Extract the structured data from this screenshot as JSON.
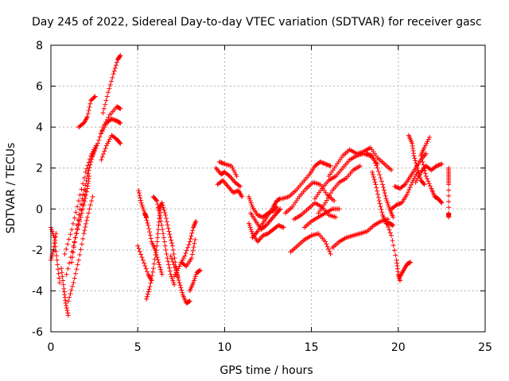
{
  "chart_data": {
    "type": "scatter",
    "title": "Day 245 of 2022, Sidereal Day-to-day VTEC variation (SDTVAR) for receiver gasc",
    "xlabel": "GPS time / hours",
    "ylabel": "SDTVAR / TECUs",
    "xlim": [
      0,
      25
    ],
    "ylim": [
      -6,
      8
    ],
    "xticks": [
      "0",
      "5",
      "10",
      "15",
      "20",
      "25"
    ],
    "yticks": [
      "-6",
      "-4",
      "-2",
      "0",
      "2",
      "4",
      "6",
      "8"
    ],
    "grid": true,
    "marker": "+",
    "color": "#ff0000",
    "traces": [
      [
        [
          0.0,
          -0.9
        ],
        [
          0.2,
          -1.4
        ],
        [
          0.35,
          -2.5
        ],
        [
          0.5,
          -3.6
        ]
      ],
      [
        [
          0.0,
          -2.5
        ],
        [
          0.15,
          -2.0
        ],
        [
          0.3,
          -1.2
        ]
      ],
      [
        [
          0.6,
          -2.9
        ],
        [
          0.75,
          -3.9
        ],
        [
          0.85,
          -4.6
        ],
        [
          1.0,
          -5.2
        ]
      ],
      [
        [
          0.8,
          -2.2
        ],
        [
          1.2,
          -1.0
        ],
        [
          1.6,
          0.4
        ],
        [
          2.0,
          1.8
        ],
        [
          2.3,
          2.6
        ],
        [
          2.6,
          3.1
        ]
      ],
      [
        [
          0.9,
          -3.2
        ],
        [
          1.3,
          -1.8
        ],
        [
          1.6,
          -0.8
        ],
        [
          1.9,
          0.2
        ],
        [
          2.1,
          1.0
        ],
        [
          2.2,
          1.6
        ]
      ],
      [
        [
          1.2,
          -2.6
        ],
        [
          1.4,
          -1.4
        ],
        [
          1.7,
          -0.3
        ],
        [
          2.0,
          0.9
        ]
      ],
      [
        [
          1.0,
          -4.5
        ],
        [
          1.3,
          -3.6
        ],
        [
          1.6,
          -2.5
        ],
        [
          1.9,
          -1.2
        ],
        [
          2.1,
          -0.4
        ],
        [
          2.4,
          0.6
        ]
      ],
      [
        [
          1.5,
          -0.8
        ],
        [
          1.8,
          0.5
        ],
        [
          2.1,
          1.6
        ],
        [
          2.3,
          2.3
        ],
        [
          2.5,
          2.9
        ]
      ],
      [
        [
          1.6,
          4.0
        ],
        [
          1.9,
          4.2
        ],
        [
          2.1,
          4.5
        ],
        [
          2.3,
          5.3
        ],
        [
          2.55,
          5.5
        ]
      ],
      [
        [
          2.4,
          2.6
        ],
        [
          2.7,
          3.2
        ],
        [
          3.0,
          4.0
        ],
        [
          3.4,
          4.6
        ],
        [
          3.8,
          5.0
        ],
        [
          4.0,
          4.9
        ]
      ],
      [
        [
          2.9,
          2.4
        ],
        [
          3.2,
          3.1
        ],
        [
          3.5,
          3.6
        ],
        [
          3.8,
          3.4
        ],
        [
          4.0,
          3.2
        ]
      ],
      [
        [
          2.9,
          3.7
        ],
        [
          3.2,
          4.2
        ],
        [
          3.5,
          4.4
        ],
        [
          3.8,
          4.3
        ],
        [
          4.0,
          4.2
        ]
      ],
      [
        [
          3.0,
          4.7
        ],
        [
          3.3,
          5.7
        ],
        [
          3.6,
          6.6
        ],
        [
          3.85,
          7.3
        ],
        [
          4.0,
          7.5
        ]
      ],
      [
        [
          5.05,
          0.9
        ],
        [
          5.2,
          0.3
        ],
        [
          5.4,
          -0.2
        ],
        [
          5.5,
          -0.4
        ]
      ],
      [
        [
          5.0,
          -1.8
        ],
        [
          5.3,
          -2.5
        ],
        [
          5.6,
          -3.2
        ],
        [
          5.8,
          -3.5
        ]
      ],
      [
        [
          5.4,
          -0.2
        ],
        [
          5.6,
          -0.8
        ],
        [
          5.8,
          -1.6
        ],
        [
          6.0,
          -2.0
        ],
        [
          6.2,
          -2.6
        ],
        [
          6.4,
          -3.2
        ]
      ],
      [
        [
          5.5,
          -4.4
        ],
        [
          5.7,
          -3.8
        ],
        [
          5.9,
          -2.9
        ],
        [
          6.1,
          -1.8
        ],
        [
          6.2,
          -0.8
        ],
        [
          6.3,
          0.0
        ]
      ],
      [
        [
          5.9,
          0.6
        ],
        [
          6.1,
          0.4
        ],
        [
          6.3,
          -0.4
        ],
        [
          6.5,
          -1.4
        ],
        [
          6.7,
          -2.4
        ],
        [
          6.9,
          -3.2
        ],
        [
          7.1,
          -3.7
        ]
      ],
      [
        [
          6.2,
          0.0
        ],
        [
          6.4,
          0.3
        ],
        [
          6.6,
          -0.3
        ],
        [
          6.8,
          -1.1
        ],
        [
          7.0,
          -1.8
        ],
        [
          7.2,
          -2.8
        ],
        [
          7.3,
          -3.3
        ]
      ],
      [
        [
          6.9,
          -2.3
        ],
        [
          7.2,
          -3.0
        ],
        [
          7.4,
          -3.6
        ],
        [
          7.6,
          -4.2
        ],
        [
          7.8,
          -4.6
        ],
        [
          8.0,
          -4.5
        ]
      ],
      [
        [
          7.1,
          -3.3
        ],
        [
          7.4,
          -2.8
        ],
        [
          7.7,
          -2.3
        ],
        [
          8.0,
          -1.6
        ],
        [
          8.2,
          -0.9
        ],
        [
          8.35,
          -0.6
        ]
      ],
      [
        [
          7.5,
          -2.6
        ],
        [
          7.8,
          -2.8
        ],
        [
          8.1,
          -2.4
        ],
        [
          8.3,
          -1.5
        ]
      ],
      [
        [
          8.0,
          -4.0
        ],
        [
          8.2,
          -3.6
        ],
        [
          8.4,
          -3.1
        ],
        [
          8.6,
          -3.0
        ]
      ],
      [
        [
          9.5,
          2.0
        ],
        [
          9.8,
          1.7
        ],
        [
          10.0,
          1.8
        ],
        [
          10.3,
          1.6
        ],
        [
          10.6,
          1.3
        ],
        [
          10.9,
          1.1
        ]
      ],
      [
        [
          9.6,
          1.2
        ],
        [
          9.9,
          1.4
        ],
        [
          10.2,
          1.1
        ],
        [
          10.5,
          0.8
        ],
        [
          10.8,
          0.9
        ],
        [
          11.0,
          0.6
        ]
      ],
      [
        [
          9.7,
          2.3
        ],
        [
          10.0,
          2.2
        ],
        [
          10.4,
          2.1
        ],
        [
          10.7,
          1.6
        ]
      ],
      [
        [
          11.4,
          0.6
        ],
        [
          11.6,
          0.1
        ],
        [
          11.9,
          -0.3
        ],
        [
          12.2,
          -0.4
        ],
        [
          12.5,
          -0.2
        ],
        [
          12.8,
          -0.1
        ],
        [
          13.0,
          0.1
        ]
      ],
      [
        [
          11.5,
          -0.2
        ],
        [
          11.8,
          -0.6
        ],
        [
          12.1,
          -1.0
        ],
        [
          12.4,
          -0.8
        ],
        [
          12.7,
          -0.5
        ],
        [
          13.0,
          -0.2
        ],
        [
          13.2,
          0.0
        ]
      ],
      [
        [
          11.6,
          -1.4
        ],
        [
          11.9,
          -1.1
        ],
        [
          12.2,
          -0.7
        ],
        [
          12.5,
          -0.3
        ],
        [
          12.8,
          0.1
        ],
        [
          13.0,
          0.4
        ],
        [
          13.2,
          0.5
        ]
      ],
      [
        [
          11.4,
          -0.7
        ],
        [
          11.6,
          -1.2
        ],
        [
          11.9,
          -1.6
        ],
        [
          12.2,
          -1.3
        ],
        [
          12.5,
          -1.2
        ],
        [
          12.8,
          -1.0
        ],
        [
          13.1,
          -0.8
        ],
        [
          13.4,
          -0.9
        ]
      ],
      [
        [
          13.3,
          0.5
        ],
        [
          13.7,
          0.6
        ],
        [
          14.1,
          0.9
        ],
        [
          14.5,
          1.3
        ],
        [
          14.9,
          1.7
        ],
        [
          15.2,
          2.1
        ],
        [
          15.5,
          2.3
        ],
        [
          15.8,
          2.2
        ],
        [
          16.1,
          2.1
        ]
      ],
      [
        [
          13.8,
          -2.1
        ],
        [
          14.2,
          -1.8
        ],
        [
          14.6,
          -1.5
        ],
        [
          15.0,
          -1.3
        ],
        [
          15.4,
          -1.2
        ],
        [
          15.8,
          -1.6
        ],
        [
          16.1,
          -2.2
        ]
      ],
      [
        [
          13.5,
          -0.2
        ],
        [
          13.9,
          0.1
        ],
        [
          14.3,
          0.6
        ],
        [
          14.7,
          1.0
        ],
        [
          15.1,
          1.3
        ],
        [
          15.5,
          1.2
        ],
        [
          15.9,
          0.7
        ],
        [
          16.3,
          0.4
        ]
      ],
      [
        [
          14.0,
          -0.5
        ],
        [
          14.4,
          -0.3
        ],
        [
          14.8,
          0.0
        ],
        [
          15.2,
          0.3
        ],
        [
          15.6,
          0.1
        ],
        [
          16.0,
          -0.3
        ],
        [
          16.4,
          -0.4
        ]
      ],
      [
        [
          14.6,
          -0.9
        ],
        [
          15.0,
          -0.6
        ],
        [
          15.4,
          -0.4
        ],
        [
          15.8,
          -0.2
        ],
        [
          16.2,
          0.0
        ],
        [
          16.6,
          0.0
        ]
      ],
      [
        [
          15.2,
          0.5
        ],
        [
          15.6,
          1.0
        ],
        [
          16.0,
          1.4
        ],
        [
          16.4,
          1.6
        ],
        [
          16.8,
          2.0
        ],
        [
          17.2,
          2.4
        ],
        [
          17.6,
          2.6
        ],
        [
          18.0,
          2.7
        ],
        [
          18.4,
          2.6
        ],
        [
          18.8,
          2.2
        ]
      ],
      [
        [
          15.4,
          -0.2
        ],
        [
          15.8,
          0.3
        ],
        [
          16.2,
          0.9
        ],
        [
          16.6,
          1.3
        ],
        [
          17.0,
          1.5
        ],
        [
          17.4,
          1.9
        ],
        [
          17.8,
          2.1
        ]
      ],
      [
        [
          16.0,
          1.6
        ],
        [
          16.4,
          2.1
        ],
        [
          16.8,
          2.6
        ],
        [
          17.2,
          2.9
        ],
        [
          17.6,
          2.7
        ],
        [
          18.0,
          2.8
        ],
        [
          18.4,
          3.0
        ],
        [
          18.8,
          2.5
        ],
        [
          19.2,
          2.2
        ],
        [
          19.6,
          1.9
        ]
      ],
      [
        [
          16.2,
          -1.9
        ],
        [
          16.6,
          -1.6
        ],
        [
          17.0,
          -1.4
        ],
        [
          17.4,
          -1.3
        ],
        [
          17.8,
          -1.2
        ],
        [
          18.2,
          -1.1
        ],
        [
          18.6,
          -0.8
        ],
        [
          19.0,
          -0.6
        ],
        [
          19.4,
          -0.5
        ]
      ],
      [
        [
          18.5,
          1.8
        ],
        [
          18.7,
          1.2
        ],
        [
          18.9,
          0.4
        ],
        [
          19.1,
          -0.3
        ],
        [
          19.3,
          -0.7
        ],
        [
          19.5,
          -0.7
        ],
        [
          19.7,
          -0.8
        ]
      ],
      [
        [
          18.2,
          2.7
        ],
        [
          18.5,
          2.6
        ],
        [
          18.8,
          2.0
        ],
        [
          19.1,
          1.2
        ],
        [
          19.3,
          0.5
        ],
        [
          19.5,
          0.0
        ],
        [
          19.7,
          -0.4
        ]
      ],
      [
        [
          19.3,
          -0.6
        ],
        [
          19.6,
          -1.3
        ],
        [
          19.9,
          -2.5
        ],
        [
          20.0,
          -3.2
        ],
        [
          20.1,
          -3.5
        ]
      ],
      [
        [
          20.1,
          -3.3
        ],
        [
          20.3,
          -3.0
        ],
        [
          20.5,
          -2.7
        ],
        [
          20.7,
          -2.6
        ]
      ],
      [
        [
          19.6,
          0.0
        ],
        [
          19.9,
          0.2
        ],
        [
          20.2,
          0.3
        ],
        [
          20.5,
          0.7
        ],
        [
          20.8,
          1.3
        ],
        [
          21.1,
          1.8
        ]
      ],
      [
        [
          19.8,
          1.1
        ],
        [
          20.1,
          1.0
        ],
        [
          20.4,
          1.2
        ],
        [
          20.7,
          1.6
        ],
        [
          21.0,
          2.0
        ],
        [
          21.3,
          2.4
        ],
        [
          21.6,
          2.7
        ]
      ],
      [
        [
          20.6,
          3.6
        ],
        [
          20.8,
          3.2
        ],
        [
          20.9,
          2.6
        ],
        [
          21.1,
          2.0
        ],
        [
          21.3,
          1.4
        ],
        [
          21.5,
          1.2
        ]
      ],
      [
        [
          21.0,
          1.3
        ],
        [
          21.3,
          1.8
        ],
        [
          21.6,
          2.1
        ],
        [
          21.9,
          1.9
        ],
        [
          22.2,
          2.1
        ],
        [
          22.5,
          2.2
        ]
      ],
      [
        [
          21.4,
          2.3
        ],
        [
          21.6,
          1.6
        ],
        [
          21.9,
          1.0
        ],
        [
          22.1,
          0.6
        ],
        [
          22.3,
          0.5
        ],
        [
          22.5,
          0.3
        ]
      ],
      [
        [
          21.3,
          2.6
        ],
        [
          21.5,
          3.0
        ],
        [
          21.8,
          3.5
        ]
      ],
      [
        [
          22.9,
          2.0
        ],
        [
          22.9,
          1.6
        ],
        [
          22.9,
          1.2
        ],
        [
          22.9,
          -0.2
        ],
        [
          22.9,
          -0.4
        ]
      ]
    ]
  }
}
